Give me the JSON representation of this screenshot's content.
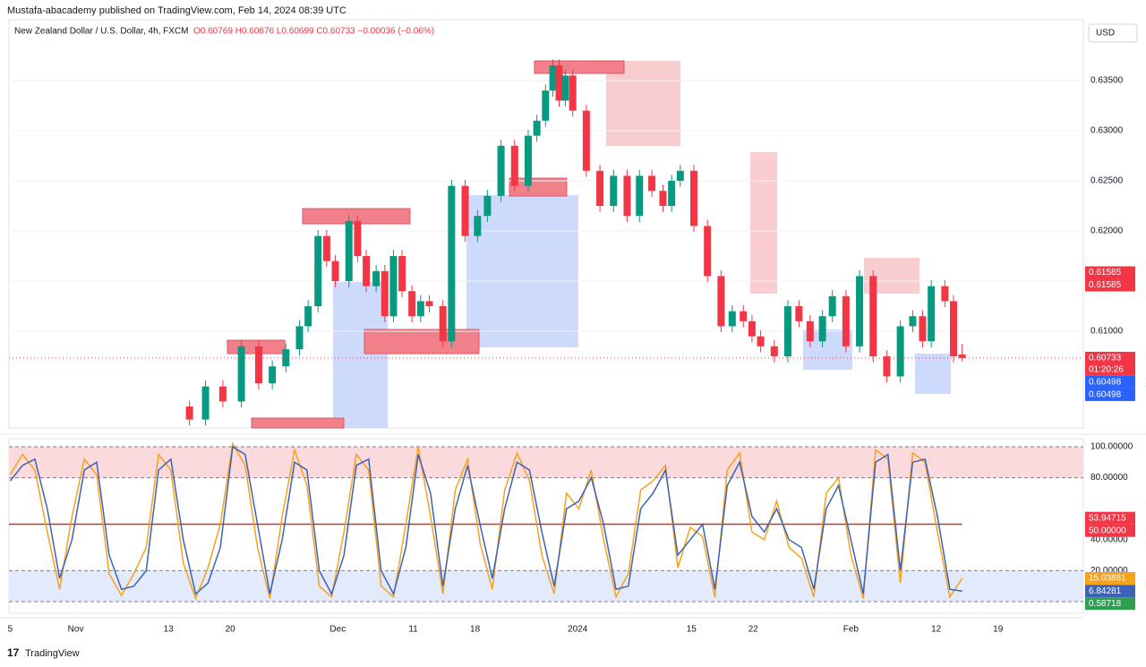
{
  "header": {
    "published": "Mustafa-abacademy published on TradingView.com, Feb 14, 2024 08:39 UTC",
    "symbol": "New Zealand Dollar / U.S. Dollar, 4h, FXCM",
    "ohlc": "O0.60769 H0.60876 L0.60699 C0.60733 −0.00036 (−0.06%)",
    "currency": "USD"
  },
  "footer": {
    "brand": "TradingView"
  },
  "chart_data": [
    {
      "type": "candlestick",
      "x": [
        14.5,
        15.8,
        17.2,
        18.7,
        20.1,
        21.2,
        22.3,
        23.4,
        24.1,
        24.9,
        25.6,
        26.3,
        27.4,
        28.1,
        28.8,
        29.6,
        30.3,
        31.0,
        31.7,
        32.5,
        33.2,
        33.9,
        35.0,
        35.7,
        36.8,
        37.8,
        38.6,
        39.7,
        40.8,
        41.9,
        42.6,
        43.3,
        43.9,
        44.4,
        44.9,
        45.5,
        46.6,
        47.7,
        48.8,
        49.9,
        50.9,
        51.9,
        52.8,
        53.5,
        54.2,
        55.3,
        56.4,
        57.5,
        58.4,
        59.3,
        60.0,
        60.7,
        61.8,
        62.9,
        63.8,
        64.7,
        65.7,
        66.5,
        67.6,
        68.7,
        69.8,
        70.9,
        72.0,
        73.0,
        73.8,
        74.5,
        75.6,
        76.3,
        77.0
      ],
      "open": [
        0.6025,
        0.6012,
        0.6045,
        0.603,
        0.6085,
        0.6048,
        0.6065,
        0.6082,
        0.6105,
        0.6125,
        0.6195,
        0.617,
        0.615,
        0.621,
        0.6175,
        0.6145,
        0.616,
        0.6115,
        0.6175,
        0.614,
        0.6115,
        0.613,
        0.6125,
        0.609,
        0.6245,
        0.6195,
        0.6215,
        0.6235,
        0.6285,
        0.6245,
        0.6295,
        0.631,
        0.634,
        0.6365,
        0.633,
        0.6355,
        0.632,
        0.626,
        0.6225,
        0.6255,
        0.6215,
        0.6255,
        0.624,
        0.6225,
        0.625,
        0.626,
        0.6205,
        0.6155,
        0.6105,
        0.612,
        0.611,
        0.6095,
        0.6085,
        0.6075,
        0.6125,
        0.611,
        0.609,
        0.6115,
        0.6135,
        0.6085,
        0.6155,
        0.6075,
        0.6055,
        0.6105,
        0.6115,
        0.609,
        0.6145,
        0.613,
        0.60769
      ],
      "high": [
        0.6031,
        0.6051,
        0.6051,
        0.6091,
        0.6091,
        0.6071,
        0.6088,
        0.6111,
        0.6131,
        0.6201,
        0.6201,
        0.6176,
        0.6216,
        0.6216,
        0.6181,
        0.6166,
        0.6166,
        0.6181,
        0.6181,
        0.6146,
        0.6136,
        0.6136,
        0.6131,
        0.6251,
        0.6251,
        0.6221,
        0.6241,
        0.6291,
        0.6291,
        0.6301,
        0.6316,
        0.6346,
        0.6371,
        0.6371,
        0.6361,
        0.6361,
        0.6326,
        0.6266,
        0.6261,
        0.6261,
        0.6261,
        0.6261,
        0.6246,
        0.6256,
        0.6266,
        0.6266,
        0.6211,
        0.6161,
        0.6126,
        0.6126,
        0.6116,
        0.6101,
        0.6091,
        0.6131,
        0.6131,
        0.6116,
        0.6121,
        0.6141,
        0.6141,
        0.6161,
        0.6161,
        0.6081,
        0.6111,
        0.6121,
        0.6121,
        0.6151,
        0.6151,
        0.6136,
        0.60876
      ],
      "low": [
        0.6006,
        0.6006,
        0.6024,
        0.6024,
        0.6042,
        0.6042,
        0.6059,
        0.6076,
        0.6099,
        0.6119,
        0.6164,
        0.6144,
        0.6144,
        0.6169,
        0.6139,
        0.6139,
        0.6109,
        0.6109,
        0.6134,
        0.6109,
        0.6109,
        0.6119,
        0.6084,
        0.6084,
        0.6189,
        0.6189,
        0.6209,
        0.6229,
        0.6239,
        0.6239,
        0.6289,
        0.6304,
        0.6334,
        0.6324,
        0.6324,
        0.6314,
        0.6254,
        0.6219,
        0.6219,
        0.6209,
        0.6209,
        0.6234,
        0.6219,
        0.6219,
        0.6244,
        0.6199,
        0.6149,
        0.6099,
        0.6099,
        0.6104,
        0.6089,
        0.6079,
        0.6069,
        0.6069,
        0.6104,
        0.6084,
        0.6084,
        0.6109,
        0.6079,
        0.6079,
        0.6069,
        0.6049,
        0.6049,
        0.6099,
        0.6084,
        0.6084,
        0.6124,
        0.6069,
        0.60699
      ],
      "close": [
        0.6012,
        0.6045,
        0.603,
        0.6085,
        0.6048,
        0.6065,
        0.6082,
        0.6105,
        0.6125,
        0.6195,
        0.617,
        0.615,
        0.621,
        0.6175,
        0.6145,
        0.616,
        0.6115,
        0.6175,
        0.614,
        0.6115,
        0.613,
        0.6125,
        0.609,
        0.6245,
        0.6195,
        0.6215,
        0.6235,
        0.6285,
        0.6245,
        0.6295,
        0.631,
        0.634,
        0.6365,
        0.633,
        0.6355,
        0.632,
        0.626,
        0.6225,
        0.6255,
        0.6215,
        0.6255,
        0.624,
        0.6225,
        0.625,
        0.626,
        0.6205,
        0.6155,
        0.6105,
        0.612,
        0.611,
        0.6095,
        0.6085,
        0.6075,
        0.6125,
        0.611,
        0.609,
        0.6115,
        0.6135,
        0.6085,
        0.6155,
        0.6075,
        0.6055,
        0.6105,
        0.6115,
        0.609,
        0.6145,
        0.613,
        0.6075,
        0.60733
      ],
      "up_color": "#089981",
      "down_color": "#f23645",
      "xlim": [
        -0.1,
        86.8
      ],
      "xticks": [
        {
          "value": 0,
          "label": "5"
        },
        {
          "value": 5.3,
          "label": "Nov"
        },
        {
          "value": 12.8,
          "label": "13"
        },
        {
          "value": 17.8,
          "label": "20"
        },
        {
          "value": 26.5,
          "label": "Dec"
        },
        {
          "value": 32.6,
          "label": "11"
        },
        {
          "value": 37.6,
          "label": "18"
        },
        {
          "value": 45.9,
          "label": "2024"
        },
        {
          "value": 55.1,
          "label": "15"
        },
        {
          "value": 60.1,
          "label": "22"
        },
        {
          "value": 68.0,
          "label": "Feb"
        },
        {
          "value": 74.9,
          "label": "12"
        },
        {
          "value": 79.9,
          "label": "19"
        }
      ],
      "ylim": [
        0.60036,
        0.64107
      ],
      "yticks": [
        {
          "value": 0.635,
          "label": "0.63500"
        },
        {
          "value": 0.63,
          "label": "0.63000"
        },
        {
          "value": 0.625,
          "label": "0.62500"
        },
        {
          "value": 0.62,
          "label": "0.62000"
        },
        {
          "value": 0.615,
          "label": "0.61500"
        },
        {
          "value": 0.61,
          "label": "0.61000"
        }
      ],
      "price_tags": [
        {
          "value": 0.61585,
          "label": "0.61585",
          "color": "#f23645"
        },
        {
          "value": 0.61585,
          "label": "0.61585",
          "color": "#f23645"
        },
        {
          "value": 0.60733,
          "label": "0.60733",
          "color": "#f23645"
        },
        {
          "value": 0.60498,
          "label": "0.60498",
          "color": "#2962ff"
        },
        {
          "value": 0.60498,
          "label": "0.60498",
          "color": "#2962ff"
        }
      ],
      "countdown": "01:20:26"
    },
    {
      "type": "line",
      "x": [
        0,
        1,
        2,
        3,
        4,
        5,
        6,
        7,
        8,
        9,
        10,
        11,
        12,
        13,
        14,
        15,
        16,
        17,
        18,
        19,
        20,
        21,
        22,
        23,
        24,
        25,
        26,
        27,
        28,
        29,
        30,
        31,
        32,
        33,
        34,
        35,
        36,
        37,
        38,
        39,
        40,
        41,
        42,
        43,
        44,
        45,
        46,
        47,
        48,
        49,
        50,
        51,
        52,
        53,
        54,
        55,
        56,
        57,
        58,
        59,
        60,
        61,
        62,
        63,
        64,
        65,
        66,
        67,
        68,
        69,
        70,
        71,
        72,
        73,
        74,
        75,
        76,
        77
      ],
      "series": [
        {
          "color": "#f7a21b",
          "values": [
            82,
            95,
            85,
            45,
            8,
            55,
            92,
            82,
            18,
            4,
            18,
            35,
            95,
            85,
            25,
            2,
            22,
            50,
            102,
            88,
            35,
            2,
            55,
            98,
            75,
            10,
            3,
            45,
            95,
            85,
            10,
            3,
            50,
            100,
            55,
            5,
            72,
            92,
            38,
            8,
            72,
            96,
            78,
            30,
            5,
            70,
            60,
            85,
            40,
            3,
            18,
            72,
            78,
            88,
            22,
            48,
            42,
            3,
            85,
            96,
            45,
            40,
            65,
            35,
            28,
            3,
            70,
            80,
            30,
            2,
            98,
            92,
            12,
            96,
            90,
            45,
            3,
            15.03881
          ]
        },
        {
          "color": "#3d63b8",
          "values": [
            78,
            88,
            92,
            60,
            15,
            40,
            85,
            90,
            30,
            8,
            10,
            20,
            85,
            92,
            40,
            5,
            12,
            35,
            100,
            95,
            50,
            5,
            40,
            90,
            85,
            20,
            5,
            30,
            88,
            92,
            20,
            5,
            35,
            95,
            70,
            10,
            60,
            88,
            50,
            15,
            60,
            90,
            85,
            45,
            10,
            60,
            65,
            80,
            50,
            8,
            10,
            60,
            70,
            85,
            30,
            40,
            50,
            8,
            75,
            90,
            55,
            45,
            60,
            40,
            35,
            8,
            60,
            75,
            40,
            5,
            90,
            95,
            20,
            90,
            92,
            55,
            8,
            6.84281
          ]
        }
      ],
      "xlim": [
        -0.1,
        86.8
      ],
      "ylim": [
        -7.5,
        105.2
      ],
      "yticks": [
        {
          "value": 100,
          "label": "100.00000"
        },
        {
          "value": 80,
          "label": "80.00000"
        },
        {
          "value": 40,
          "label": "40.00000"
        },
        {
          "value": 20,
          "label": "20.00000"
        }
      ],
      "levels": [
        100,
        80,
        50,
        20,
        0
      ],
      "value_tags": [
        {
          "value": 53.94715,
          "label": "53.94715",
          "color": "#f23645"
        },
        {
          "value": 50,
          "label": "50.00000",
          "color": "#f23645"
        },
        {
          "value": 15.03881,
          "label": "15.03881",
          "color": "#f7a21b"
        },
        {
          "value": 6.84281,
          "label": "6.84281",
          "color": "#3d63b8"
        },
        {
          "value": 0.58718,
          "label": "0.58718",
          "color": "#2e9e4f"
        }
      ]
    }
  ]
}
